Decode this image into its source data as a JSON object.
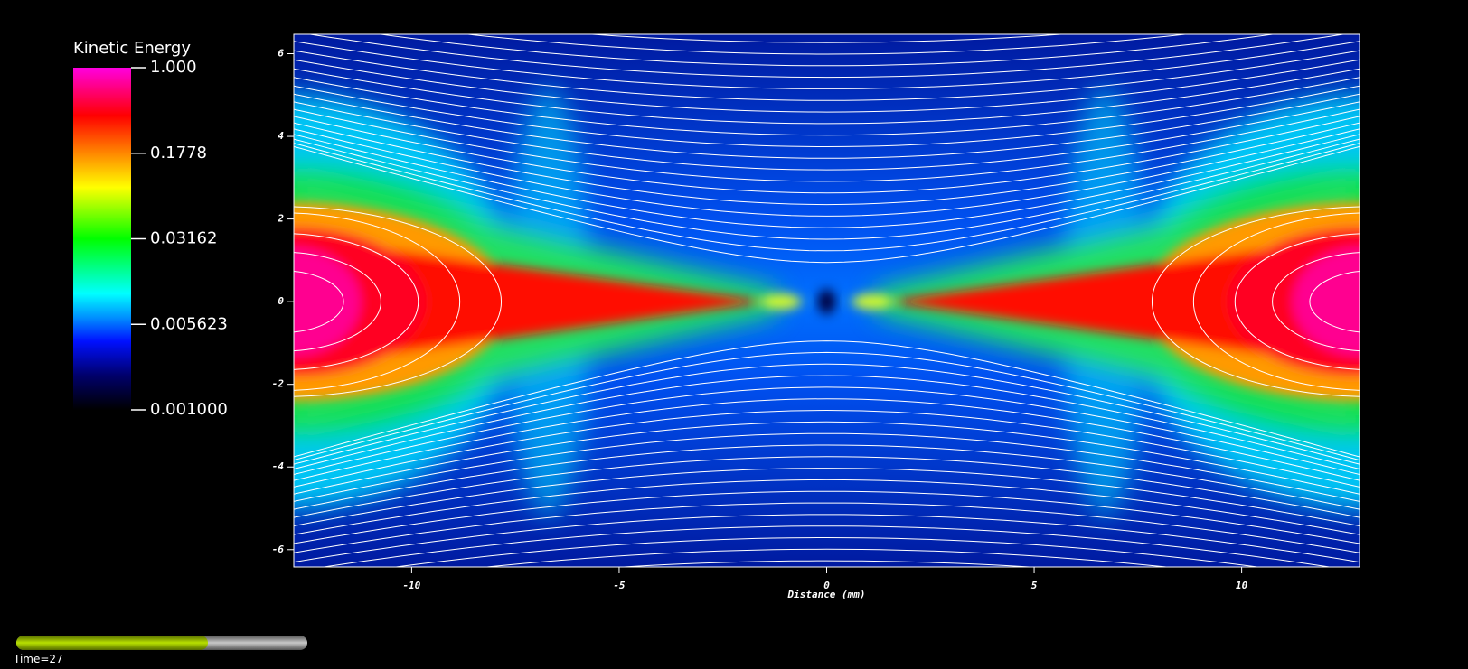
{
  "chart_data": {
    "type": "heatmap",
    "xlabel": "Distance (mm)",
    "xlim": [
      -12.84,
      12.84
    ],
    "xticks": [
      -10,
      -5,
      0,
      5,
      10
    ],
    "ylim": [
      -6.42,
      6.47
    ],
    "yticks": [
      -6,
      -4,
      -2,
      0,
      2,
      4,
      6
    ],
    "colorbar": {
      "title": "Kinetic Energy",
      "log_scale": true,
      "lim": [
        0.001,
        1
      ],
      "ticks": [
        {
          "value": 1,
          "label": "1.000"
        },
        0.1778,
        0.03162,
        0.005623,
        {
          "value": 0.001,
          "label": "0.001000"
        }
      ]
    },
    "time_label": "Time=27"
  }
}
